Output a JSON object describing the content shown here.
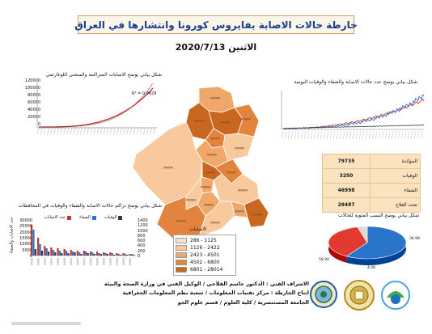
{
  "title": "خارطة حالات الاصابة بفايروس كورونا وانتشارها في العراق",
  "date": "الاثنين 2020/7/13",
  "cumulative_chart": {
    "title": "شكل بياني يوضح الاصابات المتراكمة والمنحني اللوغارتمي",
    "r2_label": "R² = 0.9429",
    "y_ticks": [
      "120000",
      "100000",
      "80000",
      "60000",
      "40000",
      "20000",
      "0"
    ]
  },
  "daily_chart": {
    "title": "شكل بياني يوضح عدد حالات الاصابة والشفاء والوفيات اليومية"
  },
  "province_chart": {
    "title": "شكل بياني يوضح تراكم حالات الاصابة والشفاء والوفيات في المحافظات",
    "legend": [
      "الوفيات",
      "الشفاء",
      "عدد الاصابات"
    ],
    "left_axis_label": "عدد الاصابات والشفاء",
    "left_ticks": [
      "30000",
      "25000",
      "20000",
      "15000",
      "10000",
      "5000",
      "0"
    ],
    "right_ticks": [
      "1400",
      "1200",
      "1000",
      "800",
      "600",
      "400",
      "200",
      "0"
    ]
  },
  "stats": [
    {
      "label": "المؤكدة",
      "value": "79735"
    },
    {
      "label": "الوفيات",
      "value": "3250"
    },
    {
      "label": "الشفاء",
      "value": "46998"
    },
    {
      "label": "تحت العلاج",
      "value": "29487"
    }
  ],
  "pie_chart": {
    "title": "شكل بياني يوضح النسب المئوية للحالات",
    "slices": [
      {
        "name": "الشفاء",
        "value": 58.94,
        "color": "#2a74c9"
      },
      {
        "name": "تحت العلاج",
        "value": 36.98,
        "color": "#e23a31"
      },
      {
        "name": "الوفيات",
        "value": 4.08,
        "color": "#dadada"
      }
    ],
    "labels": [
      "58.94",
      "36.98",
      "4.08"
    ]
  },
  "map": {
    "legend_title": "الاصابات",
    "legend": [
      {
        "label": "286 - 1125",
        "color": "#fbe4cc"
      },
      {
        "label": "1126 - 2422",
        "color": "#f7c99c"
      },
      {
        "label": "2423 - 4501",
        "color": "#efa76a"
      },
      {
        "label": "4502 - 6800",
        "color": "#e2843e"
      },
      {
        "label": "6801 - 28014",
        "color": "#c9661f"
      }
    ]
  },
  "credits": {
    "line1": "الاشراف الفني : الدكتور جاسم الفلاحي / الوكيل الفني في وزارة الصحة والبيئة",
    "line2": "انتاج الخارطة : مركز تقنيات المعلومات / شعبة نظم المعلومات الجغرافية",
    "line3": "الجامعة المستنصرية / كلية العلوم / قسم علوم الجو"
  },
  "colors": {
    "title": "#1b3f8a",
    "cumulative_line": "#d9262b",
    "daily_cases": "#e23a31",
    "daily_recovered": "#2a74c9",
    "daily_deaths": "#2a2a2a",
    "bar_cases": "#c8302a",
    "bar_recovered": "#2a74c9",
    "bar_deaths": "#3a3a3a"
  }
}
